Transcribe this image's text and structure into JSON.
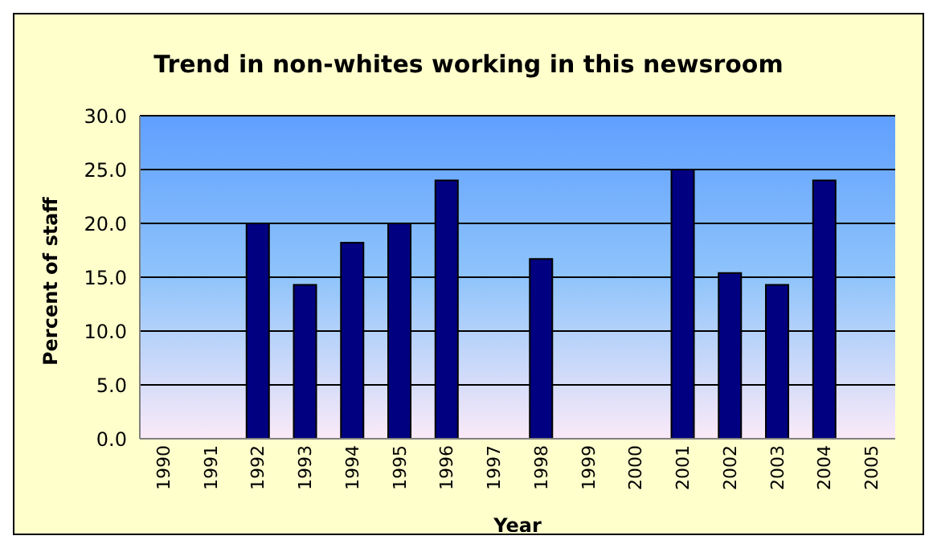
{
  "chart_data": {
    "type": "bar",
    "title": "Trend in non-whites working in this newsroom",
    "xlabel": "Year",
    "ylabel": "Percent of staff",
    "categories": [
      "1990",
      "1991",
      "1992",
      "1993",
      "1994",
      "1995",
      "1996",
      "1997",
      "1998",
      "1999",
      "2000",
      "2001",
      "2002",
      "2003",
      "2004",
      "2005"
    ],
    "values": [
      null,
      null,
      20,
      14.3,
      18.2,
      20,
      24,
      null,
      16.7,
      null,
      null,
      25,
      15.4,
      14.3,
      24,
      null
    ],
    "color": "#000080",
    "ylim": [
      0,
      30
    ],
    "yticks": [
      {
        "value": 0,
        "label": "0.0"
      },
      {
        "value": 5,
        "label": "5.0"
      },
      {
        "value": 10,
        "label": "10.0"
      },
      {
        "value": 15,
        "label": "15.0"
      },
      {
        "value": 20,
        "label": "20.0"
      },
      {
        "value": 25,
        "label": "25.0"
      },
      {
        "value": 30,
        "label": "30.0"
      }
    ],
    "grid": "y",
    "legend": false
  }
}
